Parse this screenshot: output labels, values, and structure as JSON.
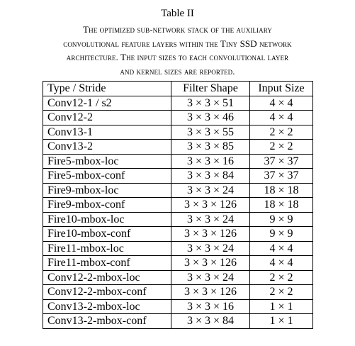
{
  "table_title": "Table II",
  "caption": {
    "lines": [
      "The optimized sub-network stack of the auxiliary",
      "convolutional feature layers within the Tiny SSD network",
      "architecture. The input sizes to each convolutional layer",
      "and kernel sizes are reported."
    ]
  },
  "table": {
    "headers": [
      "Type / Stride",
      "Filter Shape",
      "Input Size"
    ],
    "rows": [
      [
        "Conv12-1 / s2",
        "3 × 3 × 51",
        "4 × 4"
      ],
      [
        "Conv12-2",
        "3 × 3 × 46",
        "4 × 4"
      ],
      [
        "Conv13-1",
        "3 × 3 × 55",
        "2 × 2"
      ],
      [
        "Conv13-2",
        "3 × 3 × 85",
        "2 × 2"
      ],
      [
        "Fire5-mbox-loc",
        "3 × 3 × 16",
        "37 × 37"
      ],
      [
        "Fire5-mbox-conf",
        "3 × 3 × 84",
        "37 × 37"
      ],
      [
        "Fire9-mbox-loc",
        "3 × 3 × 24",
        "18 × 18"
      ],
      [
        "Fire9-mbox-conf",
        "3 × 3 × 126",
        "18 × 18"
      ],
      [
        "Fire10-mbox-loc",
        "3 × 3 × 24",
        "9 × 9"
      ],
      [
        "Fire10-mbox-conf",
        "3 × 3 × 126",
        "9 × 9"
      ],
      [
        "Fire11-mbox-loc",
        "3 × 3 × 24",
        "4 × 4"
      ],
      [
        "Fire11-mbox-conf",
        "3 × 3 × 126",
        "4 × 4"
      ],
      [
        "Conv12-2-mbox-loc",
        "3 × 3 × 24",
        "2 × 2"
      ],
      [
        "Conv12-2-mbox-conf",
        "3 × 3 × 126",
        "2 × 2"
      ],
      [
        "Conv13-2-mbox-loc",
        "3 × 3 × 16",
        "1 × 1"
      ],
      [
        "Conv13-2-mbox-conf",
        "3 × 3 × 84",
        "1 × 1"
      ]
    ]
  }
}
